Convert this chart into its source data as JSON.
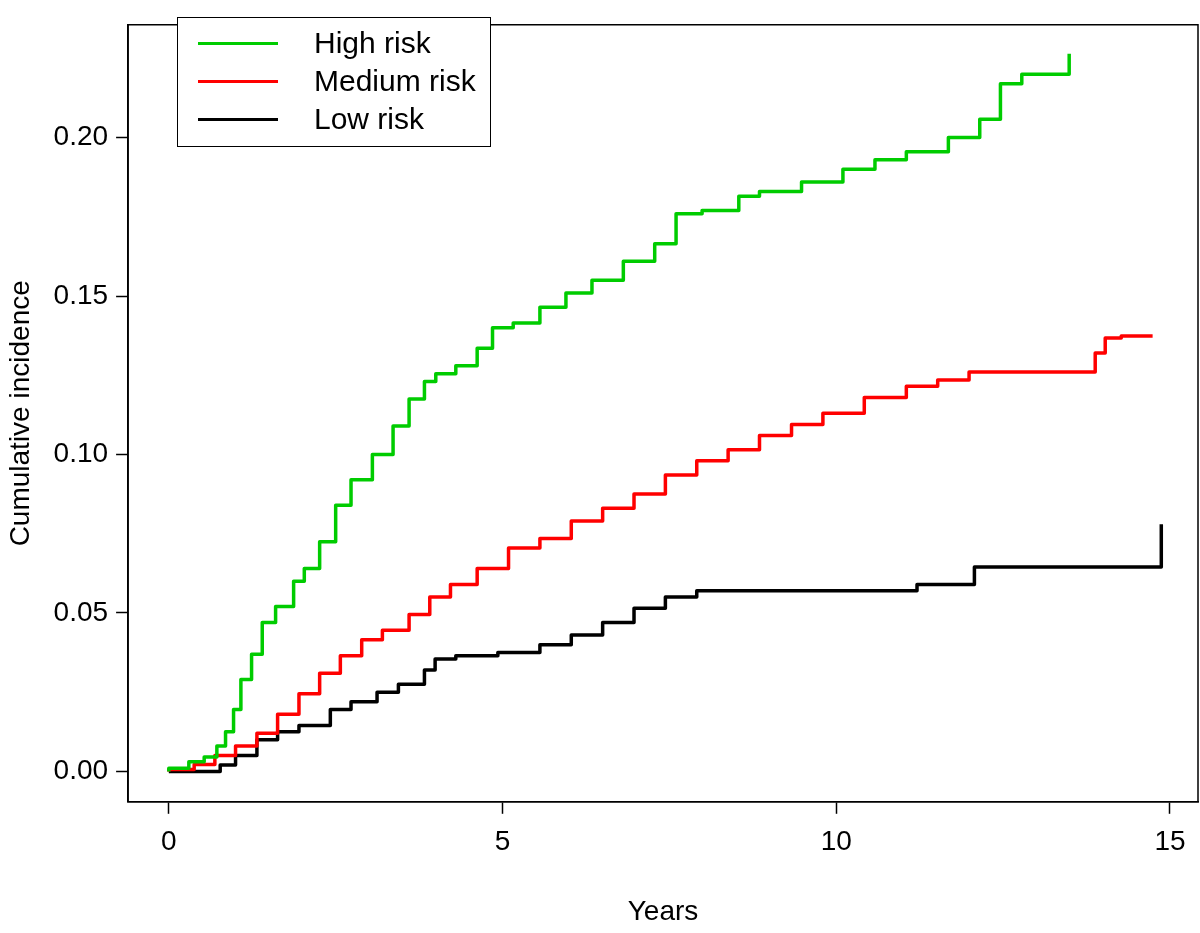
{
  "chart_data": {
    "type": "step",
    "xlabel": "Years",
    "ylabel": "Cumulative incidence",
    "xlim": [
      -0.61,
      15.42
    ],
    "xticks": [
      0,
      5,
      10,
      15
    ],
    "ylim": [
      -0.0096,
      0.2356
    ],
    "yticks": [
      {
        "value": 0,
        "label": "0.00"
      },
      {
        "value": 0.05,
        "label": "0.05"
      },
      {
        "value": 0.1,
        "label": "0.10"
      },
      {
        "value": 0.15,
        "label": "0.15"
      },
      {
        "value": 0.2,
        "label": "0.20"
      }
    ],
    "grid": false,
    "legend": "top left",
    "marker": "none",
    "line_style": "solid",
    "series": [
      {
        "name": "High risk",
        "color": "#00cc00",
        "x": [
          0,
          0.3,
          0.53,
          0.72,
          0.85,
          0.97,
          1.08,
          1.24,
          1.4,
          1.6,
          1.87,
          2.03,
          2.26,
          2.5,
          2.73,
          3.05,
          3.36,
          3.6,
          3.83,
          4.0,
          4.3,
          4.62,
          4.85,
          5.16,
          5.56,
          5.95,
          6.34,
          6.81,
          7.28,
          7.6,
          7.99,
          8.54,
          8.85,
          9.48,
          10.1,
          10.58,
          11.05,
          11.68,
          12.15,
          12.46,
          12.78,
          13.0,
          13.49,
          13.49
        ],
        "values": [
          0,
          0.001,
          0.003,
          0.0045,
          0.008,
          0.0125,
          0.0195,
          0.029,
          0.037,
          0.047,
          0.052,
          0.06,
          0.064,
          0.0725,
          0.084,
          0.092,
          0.1,
          0.109,
          0.1175,
          0.123,
          0.1255,
          0.128,
          0.1335,
          0.14,
          0.1415,
          0.1465,
          0.151,
          0.155,
          0.161,
          0.1665,
          0.176,
          0.177,
          0.1815,
          0.183,
          0.186,
          0.19,
          0.193,
          0.1955,
          0.2,
          0.2058,
          0.217,
          0.22,
          0.22,
          0.2265
        ]
      },
      {
        "name": "Medium risk",
        "color": "#ff0000",
        "x": [
          0,
          0.38,
          0.69,
          1.0,
          1.32,
          1.63,
          1.95,
          2.26,
          2.57,
          2.89,
          3.2,
          3.6,
          3.91,
          4.22,
          4.62,
          5.09,
          5.56,
          6.03,
          6.5,
          6.97,
          7.44,
          7.91,
          8.38,
          8.85,
          9.33,
          9.8,
          10.42,
          11.05,
          11.52,
          11.99,
          12.78,
          13.88,
          14.03,
          14.27,
          14.74
        ],
        "values": [
          0,
          0.0006,
          0.0022,
          0.005,
          0.008,
          0.012,
          0.018,
          0.0245,
          0.031,
          0.0365,
          0.0415,
          0.0445,
          0.0495,
          0.055,
          0.059,
          0.064,
          0.0705,
          0.0735,
          0.079,
          0.083,
          0.0875,
          0.0935,
          0.098,
          0.1015,
          0.106,
          0.1095,
          0.113,
          0.118,
          0.1215,
          0.1235,
          0.126,
          0.126,
          0.132,
          0.1368,
          0.1374
        ]
      },
      {
        "name": "Low risk",
        "color": "#000000",
        "x": [
          0,
          0.77,
          1.0,
          1.32,
          1.63,
          1.95,
          2.42,
          2.73,
          3.12,
          3.44,
          3.83,
          3.99,
          4.3,
          4.93,
          5.56,
          6.03,
          6.5,
          6.97,
          7.44,
          7.91,
          8.54,
          11.21,
          11.29,
          12.07,
          12.15,
          14.87,
          14.87
        ],
        "values": [
          0,
          0,
          0.002,
          0.005,
          0.01,
          0.0125,
          0.0145,
          0.0195,
          0.022,
          0.025,
          0.0275,
          0.032,
          0.0355,
          0.0365,
          0.0375,
          0.04,
          0.043,
          0.047,
          0.0515,
          0.055,
          0.057,
          0.057,
          0.059,
          0.059,
          0.0645,
          0.0645,
          0.078
        ]
      }
    ]
  }
}
